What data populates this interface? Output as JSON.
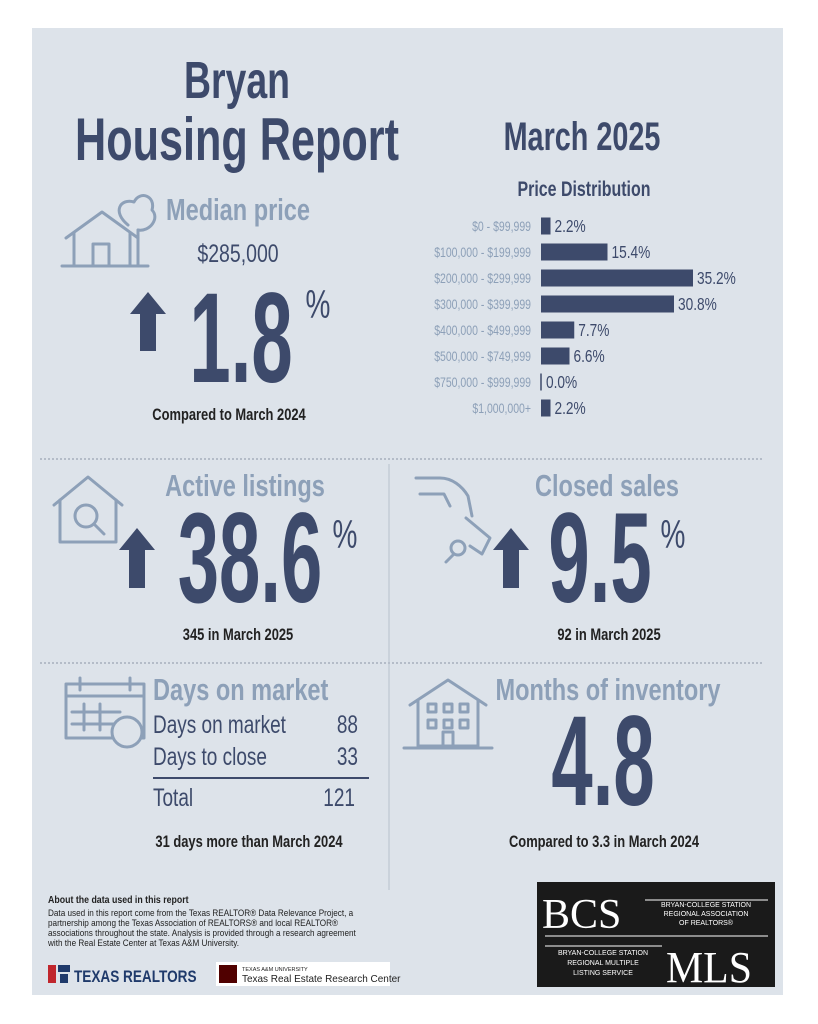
{
  "header": {
    "city": "Bryan",
    "title": "Housing Report",
    "period": "March 2025"
  },
  "median_price": {
    "title": "Median price",
    "price": "$285,000",
    "change": "1.8",
    "unit": "%",
    "note": "Compared to March 2024"
  },
  "chart_data": {
    "type": "bar",
    "title": "Price Distribution",
    "categories": [
      "$0 - $99,999",
      "$100,000 - $199,999",
      "$200,000 - $299,999",
      "$300,000 - $399,999",
      "$400,000 - $499,999",
      "$500,000 - $749,999",
      "$750,000 - $999,999",
      "$1,000,000+"
    ],
    "values": [
      2.2,
      15.4,
      35.2,
      30.8,
      7.7,
      6.6,
      0.0,
      2.2
    ],
    "value_labels": [
      "2.2%",
      "15.4%",
      "35.2%",
      "30.8%",
      "7.7%",
      "6.6%",
      "0.0%",
      "2.2%"
    ],
    "color": "#3d4a6b",
    "orientation": "horizontal"
  },
  "active_listings": {
    "title": "Active listings",
    "change": "38.6",
    "unit": "%",
    "note": "345 in March 2025"
  },
  "closed_sales": {
    "title": "Closed sales",
    "change": "9.5",
    "unit": "%",
    "note": "92 in March 2025"
  },
  "days_on_market": {
    "title": "Days on market",
    "rows": [
      [
        "Days on market",
        "88"
      ],
      [
        "Days to close",
        "33"
      ]
    ],
    "total": [
      "Total",
      "121"
    ],
    "note": "31 days more than March 2024"
  },
  "months_inventory": {
    "title": "Months of inventory",
    "value": "4.8",
    "note": "Compared to 3.3 in March 2024"
  },
  "footer": {
    "heading": "About the data used in this report",
    "lines": [
      "Data used in this report come from the Texas REALTOR® Data Relevance Project, a",
      "partnership among the Texas Association of REALTORS® and local REALTOR®",
      "associations throughout the state. Analysis is provided through a research agreement",
      "with the Real Estate Center at Texas A&M University."
    ],
    "logo_realtors": "TEXAS REALTORS",
    "logo_tamu_small": "TEXAS A&M UNIVERSITY",
    "logo_tamu": "Texas Real Estate Research Center",
    "bcs": "BCS",
    "bcs_assoc": [
      "BRYAN-COLLEGE STATION",
      "REGIONAL ASSOCIATION",
      "OF REALTORS®"
    ],
    "mls_service": [
      "BRYAN-COLLEGE STATION",
      "REGIONAL MULTIPLE",
      "LISTING SERVICE"
    ],
    "mls": "MLS"
  }
}
